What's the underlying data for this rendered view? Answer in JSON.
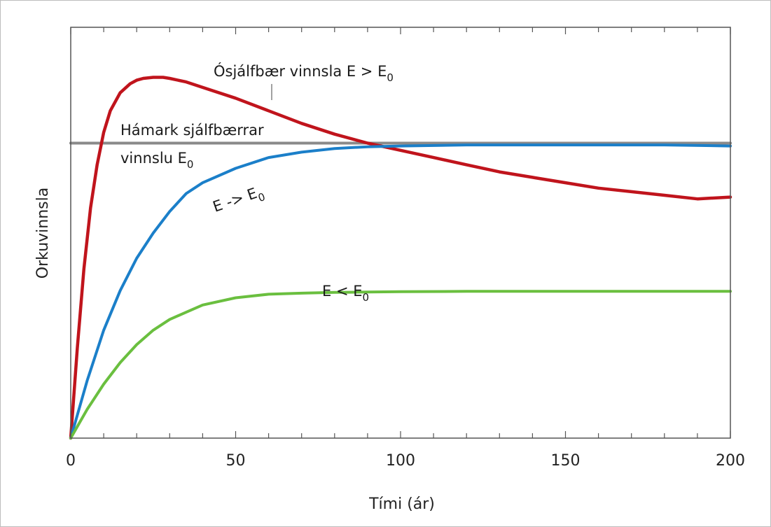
{
  "chart_data": {
    "type": "line",
    "xlabel": "Tími (ár)",
    "ylabel": "Orkuvinnsla",
    "xlim": [
      0,
      200
    ],
    "ylim": [
      0,
      1.0
    ],
    "x_ticks": [
      "0",
      "50",
      "100",
      "150",
      "200"
    ],
    "grid": false,
    "colors": {
      "sustainable_max": "#8a8a8a",
      "unsustainable": "#c0141c",
      "approach": "#1b7fc9",
      "below": "#6abf3f"
    },
    "annotations": {
      "unsustainable": {
        "text": "Ósjálfbær vinnsla E > E",
        "sub": "0"
      },
      "max_line1": "Hámark sjálfbærrar",
      "max_line2": {
        "text": "vinnslu E",
        "sub": "0"
      },
      "approach": {
        "text": "E -> E",
        "sub": "0"
      },
      "below": {
        "text": "E < E",
        "sub": "0"
      }
    },
    "series": [
      {
        "key": "sustainable_max",
        "x": [
          0,
          200
        ],
        "y": [
          0.82,
          0.82
        ]
      },
      {
        "key": "unsustainable",
        "x": [
          0,
          2,
          4,
          6,
          8,
          10,
          12,
          15,
          18,
          20,
          22,
          25,
          28,
          30,
          35,
          40,
          50,
          60,
          70,
          80,
          90,
          100,
          110,
          120,
          130,
          140,
          150,
          160,
          170,
          180,
          190,
          200
        ],
        "y": [
          0,
          0.25,
          0.47,
          0.64,
          0.76,
          0.85,
          0.91,
          0.96,
          0.985,
          0.995,
          1.0,
          1.003,
          1.003,
          1.0,
          0.99,
          0.975,
          0.945,
          0.91,
          0.875,
          0.845,
          0.82,
          0.8,
          0.78,
          0.76,
          0.74,
          0.725,
          0.71,
          0.695,
          0.685,
          0.675,
          0.665,
          0.67
        ]
      },
      {
        "key": "approach",
        "x": [
          0,
          5,
          10,
          15,
          20,
          25,
          30,
          35,
          40,
          50,
          60,
          70,
          80,
          90,
          100,
          120,
          140,
          160,
          180,
          200
        ],
        "y": [
          0,
          0.16,
          0.3,
          0.41,
          0.5,
          0.57,
          0.63,
          0.68,
          0.71,
          0.75,
          0.78,
          0.795,
          0.805,
          0.81,
          0.812,
          0.815,
          0.815,
          0.815,
          0.815,
          0.812
        ]
      },
      {
        "key": "below",
        "x": [
          0,
          5,
          10,
          15,
          20,
          25,
          30,
          35,
          40,
          50,
          60,
          70,
          80,
          90,
          100,
          120,
          140,
          160,
          180,
          200
        ],
        "y": [
          0,
          0.08,
          0.15,
          0.21,
          0.26,
          0.3,
          0.33,
          0.35,
          0.37,
          0.39,
          0.4,
          0.403,
          0.405,
          0.406,
          0.407,
          0.408,
          0.408,
          0.408,
          0.408,
          0.408
        ]
      }
    ]
  }
}
